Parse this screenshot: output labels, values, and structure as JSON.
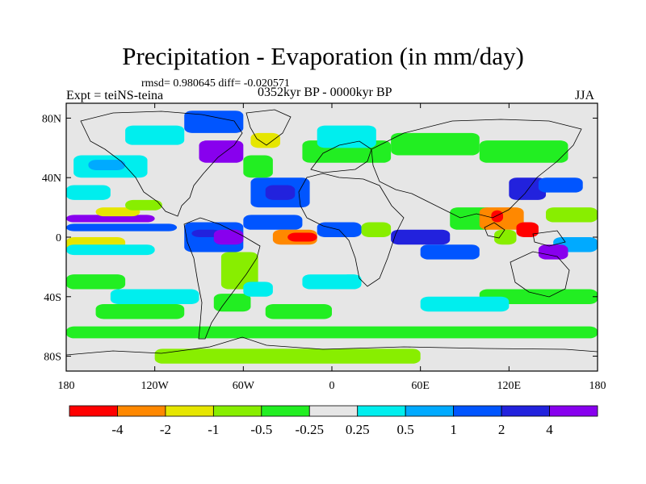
{
  "title": "Precipitation - Evaporation (in mm/day)",
  "stats": "rmsd= 0.980645 diff= -0.020571",
  "experiment": "Expt = teiNS-teina",
  "period": "0352kyr BP - 0000kyr BP",
  "season": "JJA",
  "chart_data": {
    "type": "heatmap",
    "projection": "cylindrical-equidistant",
    "lon_range": [
      -180,
      180
    ],
    "lat_range": [
      -90,
      90
    ],
    "x_ticks": [
      {
        "value": -180,
        "label": "180"
      },
      {
        "value": -120,
        "label": "120W"
      },
      {
        "value": -60,
        "label": "60W"
      },
      {
        "value": 0,
        "label": "0"
      },
      {
        "value": 60,
        "label": "60E"
      },
      {
        "value": 120,
        "label": "120E"
      },
      {
        "value": 180,
        "label": "180"
      }
    ],
    "y_ticks": [
      {
        "value": 80,
        "label": "80N"
      },
      {
        "value": 40,
        "label": "40N"
      },
      {
        "value": 0,
        "label": "0"
      },
      {
        "value": -40,
        "label": "40S"
      },
      {
        "value": -80,
        "label": "80S"
      }
    ],
    "colorbar": {
      "levels": [
        "-4",
        "-2",
        "-1",
        "-0.5",
        "-0.25",
        "0.25",
        "0.5",
        "1",
        "2",
        "4"
      ],
      "colors": [
        "#ff0000",
        "#ff8800",
        "#e6e600",
        "#88ee00",
        "#22ee22",
        "#e6e6e6",
        "#00eeee",
        "#00aaff",
        "#0055ff",
        "#2222dd",
        "#8800ee"
      ]
    },
    "regions": [
      {
        "lon": [
          -180,
          180
        ],
        "lat": [
          -90,
          90
        ],
        "level": 5
      },
      {
        "lon": [
          -180,
          -120
        ],
        "lat": [
          10,
          15
        ],
        "level": 10
      },
      {
        "lon": [
          -180,
          -105
        ],
        "lat": [
          4,
          9
        ],
        "level": 8
      },
      {
        "lon": [
          -160,
          -130
        ],
        "lat": [
          14,
          20
        ],
        "level": 2
      },
      {
        "lon": [
          -140,
          -115
        ],
        "lat": [
          18,
          25
        ],
        "level": 3
      },
      {
        "lon": [
          -180,
          -140
        ],
        "lat": [
          -10,
          0
        ],
        "level": 2
      },
      {
        "lon": [
          -180,
          -120
        ],
        "lat": [
          -12,
          -5
        ],
        "level": 6
      },
      {
        "lon": [
          -180,
          -140
        ],
        "lat": [
          -35,
          -25
        ],
        "level": 4
      },
      {
        "lon": [
          -160,
          -100
        ],
        "lat": [
          -55,
          -45
        ],
        "level": 4
      },
      {
        "lon": [
          -150,
          -90
        ],
        "lat": [
          -45,
          -35
        ],
        "level": 6
      },
      {
        "lon": [
          -180,
          -150
        ],
        "lat": [
          25,
          35
        ],
        "level": 6
      },
      {
        "lon": [
          -175,
          -125
        ],
        "lat": [
          40,
          55
        ],
        "level": 6
      },
      {
        "lon": [
          -165,
          -140
        ],
        "lat": [
          45,
          52
        ],
        "level": 7
      },
      {
        "lon": [
          -100,
          -60
        ],
        "lat": [
          -10,
          10
        ],
        "level": 8
      },
      {
        "lon": [
          -95,
          -75
        ],
        "lat": [
          0,
          5
        ],
        "level": 9
      },
      {
        "lon": [
          -80,
          -60
        ],
        "lat": [
          -5,
          5
        ],
        "level": 10
      },
      {
        "lon": [
          -75,
          -50
        ],
        "lat": [
          -35,
          -10
        ],
        "level": 3
      },
      {
        "lon": [
          -80,
          -55
        ],
        "lat": [
          -50,
          -38
        ],
        "level": 4
      },
      {
        "lon": [
          -60,
          -40
        ],
        "lat": [
          -40,
          -30
        ],
        "level": 6
      },
      {
        "lon": [
          -60,
          -20
        ],
        "lat": [
          5,
          15
        ],
        "level": 8
      },
      {
        "lon": [
          -40,
          -10
        ],
        "lat": [
          -5,
          5
        ],
        "level": 1
      },
      {
        "lon": [
          -30,
          -10
        ],
        "lat": [
          -3,
          3
        ],
        "level": 0
      },
      {
        "lon": [
          -55,
          -15
        ],
        "lat": [
          20,
          40
        ],
        "level": 8
      },
      {
        "lon": [
          -45,
          -25
        ],
        "lat": [
          25,
          35
        ],
        "level": 9
      },
      {
        "lon": [
          -60,
          -40
        ],
        "lat": [
          40,
          55
        ],
        "level": 4
      },
      {
        "lon": [
          -55,
          -35
        ],
        "lat": [
          60,
          70
        ],
        "level": 2
      },
      {
        "lon": [
          -45,
          0
        ],
        "lat": [
          -55,
          -45
        ],
        "level": 4
      },
      {
        "lon": [
          -20,
          20
        ],
        "lat": [
          -35,
          -25
        ],
        "level": 6
      },
      {
        "lon": [
          -25,
          15
        ],
        "lat": [
          -25,
          -15
        ],
        "level": 5
      },
      {
        "lon": [
          -10,
          20
        ],
        "lat": [
          0,
          10
        ],
        "level": 8
      },
      {
        "lon": [
          20,
          40
        ],
        "lat": [
          0,
          10
        ],
        "level": 3
      },
      {
        "lon": [
          -20,
          40
        ],
        "lat": [
          50,
          65
        ],
        "level": 4
      },
      {
        "lon": [
          -10,
          30
        ],
        "lat": [
          60,
          75
        ],
        "level": 6
      },
      {
        "lon": [
          40,
          100
        ],
        "lat": [
          55,
          70
        ],
        "level": 4
      },
      {
        "lon": [
          100,
          160
        ],
        "lat": [
          50,
          65
        ],
        "level": 4
      },
      {
        "lon": [
          40,
          80
        ],
        "lat": [
          -5,
          5
        ],
        "level": 9
      },
      {
        "lon": [
          60,
          100
        ],
        "lat": [
          -15,
          -5
        ],
        "level": 8
      },
      {
        "lon": [
          80,
          110
        ],
        "lat": [
          5,
          20
        ],
        "level": 4
      },
      {
        "lon": [
          100,
          130
        ],
        "lat": [
          5,
          20
        ],
        "level": 1
      },
      {
        "lon": [
          108,
          116
        ],
        "lat": [
          10,
          18
        ],
        "level": 0
      },
      {
        "lon": [
          125,
          140
        ],
        "lat": [
          0,
          10
        ],
        "level": 0
      },
      {
        "lon": [
          110,
          125
        ],
        "lat": [
          -5,
          5
        ],
        "level": 3
      },
      {
        "lon": [
          120,
          145
        ],
        "lat": [
          25,
          40
        ],
        "level": 9
      },
      {
        "lon": [
          140,
          170
        ],
        "lat": [
          30,
          40
        ],
        "level": 8
      },
      {
        "lon": [
          145,
          180
        ],
        "lat": [
          10,
          20
        ],
        "level": 3
      },
      {
        "lon": [
          150,
          180
        ],
        "lat": [
          -10,
          0
        ],
        "level": 7
      },
      {
        "lon": [
          140,
          160
        ],
        "lat": [
          -15,
          -5
        ],
        "level": 10
      },
      {
        "lon": [
          100,
          180
        ],
        "lat": [
          -45,
          -35
        ],
        "level": 4
      },
      {
        "lon": [
          60,
          120
        ],
        "lat": [
          -50,
          -40
        ],
        "level": 6
      },
      {
        "lon": [
          -180,
          180
        ],
        "lat": [
          -68,
          -60
        ],
        "level": 4
      },
      {
        "lon": [
          -120,
          60
        ],
        "lat": [
          -85,
          -75
        ],
        "level": 3
      },
      {
        "lon": [
          -100,
          -60
        ],
        "lat": [
          70,
          85
        ],
        "level": 8
      },
      {
        "lon": [
          -140,
          -100
        ],
        "lat": [
          62,
          75
        ],
        "level": 6
      },
      {
        "lon": [
          -90,
          -60
        ],
        "lat": [
          50,
          65
        ],
        "level": 10
      }
    ]
  }
}
